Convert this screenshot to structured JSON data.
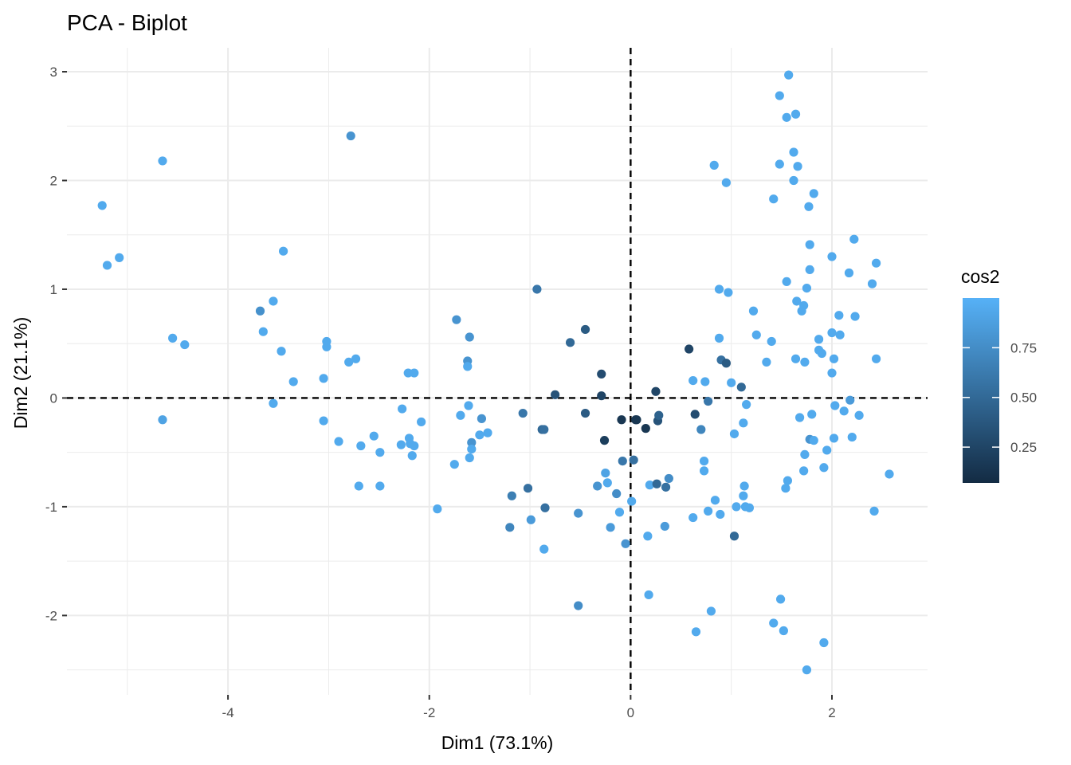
{
  "chart_data": {
    "type": "scatter",
    "title": "PCA - Biplot",
    "xlabel": "Dim1 (73.1%)",
    "ylabel": "Dim2 (21.1%)",
    "xlim": [
      -5.6,
      2.95
    ],
    "ylim": [
      -2.73,
      3.22
    ],
    "x_ticks": [
      -4,
      -2,
      0,
      2
    ],
    "y_ticks": [
      -2,
      -1,
      0,
      1,
      2,
      3
    ],
    "grid": true,
    "reference_lines": {
      "x": 0,
      "y": 0,
      "style": "dashed"
    },
    "legend": {
      "title": "cos2",
      "position": "right",
      "type": "colorbar",
      "ticks": [
        0.25,
        0.5,
        0.75
      ],
      "tick_labels": [
        "0.25",
        "0.50",
        "0.75"
      ],
      "range": [
        0.07,
        1.0
      ],
      "low_color": "#132B43",
      "high_color": "#56B1F7"
    },
    "points": [
      {
        "x": -5.25,
        "y": 1.77,
        "cos2": 0.95
      },
      {
        "x": -5.2,
        "y": 1.22,
        "cos2": 0.95
      },
      {
        "x": -5.08,
        "y": 1.29,
        "cos2": 0.95
      },
      {
        "x": -4.65,
        "y": 2.18,
        "cos2": 0.95
      },
      {
        "x": -4.55,
        "y": 0.55,
        "cos2": 0.95
      },
      {
        "x": -4.43,
        "y": 0.49,
        "cos2": 0.95
      },
      {
        "x": -4.65,
        "y": -0.2,
        "cos2": 0.9
      },
      {
        "x": -3.68,
        "y": 0.8,
        "cos2": 0.78
      },
      {
        "x": -3.65,
        "y": 0.61,
        "cos2": 0.95
      },
      {
        "x": -3.55,
        "y": 0.89,
        "cos2": 0.95
      },
      {
        "x": -3.45,
        "y": 1.35,
        "cos2": 0.95
      },
      {
        "x": -3.47,
        "y": 0.43,
        "cos2": 0.95
      },
      {
        "x": -3.35,
        "y": 0.15,
        "cos2": 0.95
      },
      {
        "x": -3.55,
        "y": -0.05,
        "cos2": 0.95
      },
      {
        "x": -3.02,
        "y": 0.52,
        "cos2": 0.95
      },
      {
        "x": -3.02,
        "y": 0.47,
        "cos2": 0.95
      },
      {
        "x": -3.05,
        "y": 0.18,
        "cos2": 0.95
      },
      {
        "x": -3.05,
        "y": -0.21,
        "cos2": 0.95
      },
      {
        "x": -2.9,
        "y": -0.4,
        "cos2": 0.95
      },
      {
        "x": -2.78,
        "y": 2.41,
        "cos2": 0.8
      },
      {
        "x": -2.8,
        "y": 0.33,
        "cos2": 0.95
      },
      {
        "x": -2.73,
        "y": 0.36,
        "cos2": 0.95
      },
      {
        "x": -2.68,
        "y": -0.44,
        "cos2": 0.95
      },
      {
        "x": -2.7,
        "y": -0.81,
        "cos2": 0.95
      },
      {
        "x": -2.55,
        "y": -0.35,
        "cos2": 0.95
      },
      {
        "x": -2.49,
        "y": -0.5,
        "cos2": 0.95
      },
      {
        "x": -2.49,
        "y": -0.81,
        "cos2": 0.95
      },
      {
        "x": -2.27,
        "y": -0.1,
        "cos2": 0.95
      },
      {
        "x": -2.28,
        "y": -0.43,
        "cos2": 0.95
      },
      {
        "x": -2.21,
        "y": 0.23,
        "cos2": 0.95
      },
      {
        "x": -2.15,
        "y": 0.23,
        "cos2": 0.95
      },
      {
        "x": -2.2,
        "y": -0.37,
        "cos2": 0.95
      },
      {
        "x": -2.19,
        "y": -0.42,
        "cos2": 0.95
      },
      {
        "x": -2.17,
        "y": -0.53,
        "cos2": 0.95
      },
      {
        "x": -2.15,
        "y": -0.44,
        "cos2": 0.95
      },
      {
        "x": -2.08,
        "y": -0.22,
        "cos2": 0.95
      },
      {
        "x": -1.92,
        "y": -1.02,
        "cos2": 0.95
      },
      {
        "x": -1.75,
        "y": -0.61,
        "cos2": 0.95
      },
      {
        "x": -1.73,
        "y": 0.72,
        "cos2": 0.8
      },
      {
        "x": -1.69,
        "y": -0.16,
        "cos2": 0.95
      },
      {
        "x": -1.6,
        "y": 0.56,
        "cos2": 0.8
      },
      {
        "x": -1.62,
        "y": 0.34,
        "cos2": 0.8
      },
      {
        "x": -1.62,
        "y": 0.29,
        "cos2": 0.95
      },
      {
        "x": -1.61,
        "y": -0.07,
        "cos2": 0.95
      },
      {
        "x": -1.58,
        "y": -0.41,
        "cos2": 0.8
      },
      {
        "x": -1.58,
        "y": -0.47,
        "cos2": 0.95
      },
      {
        "x": -1.6,
        "y": -0.55,
        "cos2": 0.95
      },
      {
        "x": -1.48,
        "y": -0.19,
        "cos2": 0.8
      },
      {
        "x": -1.5,
        "y": -0.34,
        "cos2": 0.95
      },
      {
        "x": -1.42,
        "y": -0.32,
        "cos2": 0.95
      },
      {
        "x": -1.18,
        "y": -0.9,
        "cos2": 0.65
      },
      {
        "x": -1.2,
        "y": -1.19,
        "cos2": 0.7
      },
      {
        "x": -1.07,
        "y": -0.14,
        "cos2": 0.6
      },
      {
        "x": -1.02,
        "y": -0.83,
        "cos2": 0.55
      },
      {
        "x": -0.99,
        "y": -1.12,
        "cos2": 0.85
      },
      {
        "x": -0.93,
        "y": 1.0,
        "cos2": 0.6
      },
      {
        "x": -0.88,
        "y": -0.29,
        "cos2": 0.5
      },
      {
        "x": -0.86,
        "y": -0.29,
        "cos2": 0.55
      },
      {
        "x": -0.85,
        "y": -1.01,
        "cos2": 0.55
      },
      {
        "x": -0.86,
        "y": -1.39,
        "cos2": 0.95
      },
      {
        "x": -0.75,
        "y": 0.03,
        "cos2": 0.35
      },
      {
        "x": -0.6,
        "y": 0.51,
        "cos2": 0.5
      },
      {
        "x": -0.52,
        "y": -1.06,
        "cos2": 0.8
      },
      {
        "x": -0.52,
        "y": -1.91,
        "cos2": 0.75
      },
      {
        "x": -0.45,
        "y": 0.63,
        "cos2": 0.4
      },
      {
        "x": -0.45,
        "y": -0.14,
        "cos2": 0.4
      },
      {
        "x": -0.33,
        "y": -0.81,
        "cos2": 0.8
      },
      {
        "x": -0.29,
        "y": 0.22,
        "cos2": 0.3
      },
      {
        "x": -0.29,
        "y": 0.02,
        "cos2": 0.25
      },
      {
        "x": -0.26,
        "y": -0.39,
        "cos2": 0.2
      },
      {
        "x": -0.25,
        "y": -0.69,
        "cos2": 0.9
      },
      {
        "x": -0.23,
        "y": -0.78,
        "cos2": 0.95
      },
      {
        "x": -0.2,
        "y": -1.19,
        "cos2": 0.85
      },
      {
        "x": -0.14,
        "y": -0.88,
        "cos2": 0.75
      },
      {
        "x": -0.11,
        "y": -1.05,
        "cos2": 0.95
      },
      {
        "x": -0.09,
        "y": -0.2,
        "cos2": 0.15
      },
      {
        "x": -0.08,
        "y": -0.58,
        "cos2": 0.6
      },
      {
        "x": -0.05,
        "y": -1.34,
        "cos2": 0.8
      },
      {
        "x": 0.01,
        "y": -0.95,
        "cos2": 0.95
      },
      {
        "x": 0.03,
        "y": -0.57,
        "cos2": 0.55
      },
      {
        "x": 0.05,
        "y": -0.2,
        "cos2": 0.15
      },
      {
        "x": 0.06,
        "y": -0.2,
        "cos2": 0.15
      },
      {
        "x": 0.15,
        "y": -0.28,
        "cos2": 0.15
      },
      {
        "x": 0.19,
        "y": -0.8,
        "cos2": 0.95
      },
      {
        "x": 0.17,
        "y": -1.27,
        "cos2": 0.95
      },
      {
        "x": 0.18,
        "y": -1.81,
        "cos2": 0.95
      },
      {
        "x": 0.25,
        "y": 0.06,
        "cos2": 0.25
      },
      {
        "x": 0.26,
        "y": -0.79,
        "cos2": 0.5
      },
      {
        "x": 0.27,
        "y": -0.21,
        "cos2": 0.35
      },
      {
        "x": 0.28,
        "y": -0.16,
        "cos2": 0.45
      },
      {
        "x": 0.35,
        "y": -0.82,
        "cos2": 0.55
      },
      {
        "x": 0.38,
        "y": -0.74,
        "cos2": 0.75
      },
      {
        "x": 0.34,
        "y": -1.18,
        "cos2": 0.85
      },
      {
        "x": 0.58,
        "y": 0.45,
        "cos2": 0.25
      },
      {
        "x": 0.62,
        "y": 0.16,
        "cos2": 0.95
      },
      {
        "x": 0.64,
        "y": -0.15,
        "cos2": 0.3
      },
      {
        "x": 0.62,
        "y": -1.1,
        "cos2": 0.95
      },
      {
        "x": 0.65,
        "y": -2.15,
        "cos2": 0.95
      },
      {
        "x": 0.7,
        "y": -0.29,
        "cos2": 0.7
      },
      {
        "x": 0.73,
        "y": -0.58,
        "cos2": 0.95
      },
      {
        "x": 0.73,
        "y": -0.67,
        "cos2": 0.95
      },
      {
        "x": 0.74,
        "y": 0.15,
        "cos2": 0.95
      },
      {
        "x": 0.77,
        "y": -0.03,
        "cos2": 0.6
      },
      {
        "x": 0.77,
        "y": -1.04,
        "cos2": 0.95
      },
      {
        "x": 0.8,
        "y": -1.96,
        "cos2": 0.95
      },
      {
        "x": 0.83,
        "y": 2.14,
        "cos2": 0.95
      },
      {
        "x": 0.84,
        "y": -0.94,
        "cos2": 0.95
      },
      {
        "x": 0.88,
        "y": 1.0,
        "cos2": 0.95
      },
      {
        "x": 0.88,
        "y": 0.55,
        "cos2": 0.95
      },
      {
        "x": 0.9,
        "y": 0.35,
        "cos2": 0.55
      },
      {
        "x": 0.89,
        "y": -1.07,
        "cos2": 0.95
      },
      {
        "x": 0.95,
        "y": 1.98,
        "cos2": 0.95
      },
      {
        "x": 0.95,
        "y": 0.32,
        "cos2": 0.4
      },
      {
        "x": 0.97,
        "y": 0.97,
        "cos2": 0.95
      },
      {
        "x": 1.0,
        "y": 0.14,
        "cos2": 0.95
      },
      {
        "x": 1.03,
        "y": -0.33,
        "cos2": 0.95
      },
      {
        "x": 1.03,
        "y": -1.27,
        "cos2": 0.5
      },
      {
        "x": 1.05,
        "y": -1.0,
        "cos2": 0.95
      },
      {
        "x": 1.1,
        "y": 0.1,
        "cos2": 0.5
      },
      {
        "x": 1.12,
        "y": -0.23,
        "cos2": 0.95
      },
      {
        "x": 1.12,
        "y": -0.9,
        "cos2": 0.95
      },
      {
        "x": 1.13,
        "y": -0.81,
        "cos2": 0.95
      },
      {
        "x": 1.14,
        "y": -1.0,
        "cos2": 0.95
      },
      {
        "x": 1.15,
        "y": -0.06,
        "cos2": 0.95
      },
      {
        "x": 1.18,
        "y": -1.01,
        "cos2": 0.95
      },
      {
        "x": 1.22,
        "y": 0.8,
        "cos2": 0.95
      },
      {
        "x": 1.25,
        "y": 0.58,
        "cos2": 0.95
      },
      {
        "x": 1.35,
        "y": 0.33,
        "cos2": 0.95
      },
      {
        "x": 1.4,
        "y": 0.52,
        "cos2": 0.95
      },
      {
        "x": 1.42,
        "y": 1.83,
        "cos2": 0.95
      },
      {
        "x": 1.42,
        "y": -2.07,
        "cos2": 0.95
      },
      {
        "x": 1.48,
        "y": 2.15,
        "cos2": 0.95
      },
      {
        "x": 1.48,
        "y": 2.78,
        "cos2": 0.95
      },
      {
        "x": 1.49,
        "y": -1.85,
        "cos2": 0.95
      },
      {
        "x": 1.52,
        "y": -2.14,
        "cos2": 0.95
      },
      {
        "x": 1.55,
        "y": 2.58,
        "cos2": 0.95
      },
      {
        "x": 1.57,
        "y": 2.97,
        "cos2": 0.95
      },
      {
        "x": 1.55,
        "y": 1.07,
        "cos2": 0.95
      },
      {
        "x": 1.54,
        "y": -0.83,
        "cos2": 0.95
      },
      {
        "x": 1.56,
        "y": -0.76,
        "cos2": 0.95
      },
      {
        "x": 1.62,
        "y": 2.26,
        "cos2": 0.95
      },
      {
        "x": 1.62,
        "y": 2.0,
        "cos2": 0.95
      },
      {
        "x": 1.64,
        "y": 2.61,
        "cos2": 0.95
      },
      {
        "x": 1.66,
        "y": 2.13,
        "cos2": 0.95
      },
      {
        "x": 1.64,
        "y": 0.36,
        "cos2": 0.95
      },
      {
        "x": 1.65,
        "y": 0.89,
        "cos2": 0.95
      },
      {
        "x": 1.68,
        "y": -0.18,
        "cos2": 0.95
      },
      {
        "x": 1.7,
        "y": 0.8,
        "cos2": 0.95
      },
      {
        "x": 1.72,
        "y": 0.85,
        "cos2": 0.95
      },
      {
        "x": 1.73,
        "y": -0.52,
        "cos2": 0.95
      },
      {
        "x": 1.72,
        "y": -0.67,
        "cos2": 0.95
      },
      {
        "x": 1.73,
        "y": 0.33,
        "cos2": 0.95
      },
      {
        "x": 1.75,
        "y": 1.01,
        "cos2": 0.95
      },
      {
        "x": 1.77,
        "y": 1.76,
        "cos2": 0.95
      },
      {
        "x": 1.78,
        "y": 1.41,
        "cos2": 0.95
      },
      {
        "x": 1.78,
        "y": 1.18,
        "cos2": 0.95
      },
      {
        "x": 1.78,
        "y": -0.38,
        "cos2": 0.8
      },
      {
        "x": 1.8,
        "y": -0.15,
        "cos2": 0.95
      },
      {
        "x": 1.82,
        "y": 1.88,
        "cos2": 0.95
      },
      {
        "x": 1.82,
        "y": -0.39,
        "cos2": 0.95
      },
      {
        "x": 1.75,
        "y": -2.5,
        "cos2": 0.95
      },
      {
        "x": 1.87,
        "y": 0.54,
        "cos2": 0.95
      },
      {
        "x": 1.87,
        "y": 0.44,
        "cos2": 0.95
      },
      {
        "x": 1.9,
        "y": 0.41,
        "cos2": 0.95
      },
      {
        "x": 1.92,
        "y": -2.25,
        "cos2": 0.95
      },
      {
        "x": 1.92,
        "y": -0.64,
        "cos2": 0.95
      },
      {
        "x": 1.95,
        "y": -0.48,
        "cos2": 0.95
      },
      {
        "x": 2.0,
        "y": 1.3,
        "cos2": 0.95
      },
      {
        "x": 2.0,
        "y": 0.6,
        "cos2": 0.95
      },
      {
        "x": 2.0,
        "y": 0.23,
        "cos2": 0.95
      },
      {
        "x": 2.02,
        "y": 0.36,
        "cos2": 0.95
      },
      {
        "x": 2.03,
        "y": -0.07,
        "cos2": 0.95
      },
      {
        "x": 2.02,
        "y": -0.37,
        "cos2": 0.95
      },
      {
        "x": 2.07,
        "y": 0.76,
        "cos2": 0.95
      },
      {
        "x": 2.08,
        "y": 0.58,
        "cos2": 0.95
      },
      {
        "x": 2.12,
        "y": -0.12,
        "cos2": 0.95
      },
      {
        "x": 2.17,
        "y": 1.15,
        "cos2": 0.95
      },
      {
        "x": 2.18,
        "y": -0.02,
        "cos2": 0.85
      },
      {
        "x": 2.2,
        "y": -0.36,
        "cos2": 0.95
      },
      {
        "x": 2.22,
        "y": 1.46,
        "cos2": 0.95
      },
      {
        "x": 2.23,
        "y": 0.75,
        "cos2": 0.95
      },
      {
        "x": 2.27,
        "y": -0.16,
        "cos2": 0.95
      },
      {
        "x": 2.4,
        "y": 1.05,
        "cos2": 0.95
      },
      {
        "x": 2.42,
        "y": -1.04,
        "cos2": 0.95
      },
      {
        "x": 2.44,
        "y": 1.24,
        "cos2": 0.95
      },
      {
        "x": 2.44,
        "y": 0.36,
        "cos2": 0.95
      },
      {
        "x": 2.57,
        "y": -0.7,
        "cos2": 0.95
      }
    ]
  }
}
